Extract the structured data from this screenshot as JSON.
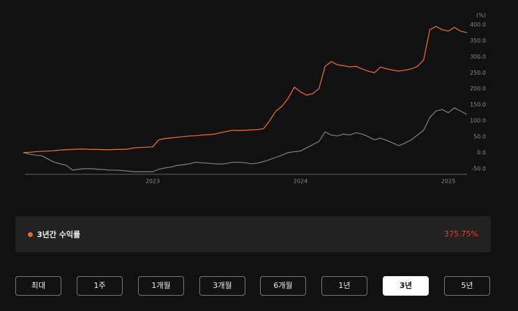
{
  "chart_data": {
    "type": "line",
    "y_unit": "(%)",
    "categories": [
      null,
      null,
      null,
      null,
      null,
      null,
      null,
      null,
      null,
      null,
      null,
      null,
      null,
      null,
      null,
      null,
      null,
      null,
      null,
      null,
      null,
      "2023",
      null,
      null,
      null,
      null,
      null,
      null,
      null,
      null,
      null,
      null,
      null,
      null,
      null,
      null,
      null,
      null,
      null,
      null,
      null,
      null,
      null,
      null,
      null,
      "2024",
      null,
      null,
      null,
      null,
      null,
      null,
      null,
      null,
      null,
      null,
      null,
      null,
      null,
      null,
      null,
      null,
      null,
      null,
      null,
      null,
      null,
      null,
      null,
      "2025",
      null,
      null,
      null
    ],
    "series": [
      {
        "color": "#e8692d",
        "values": [
          0,
          1,
          3,
          4,
          5,
          6,
          8,
          9,
          10,
          11,
          11,
          10,
          10,
          9,
          9,
          10,
          10,
          11,
          15,
          16,
          17,
          18,
          40,
          44,
          46,
          48,
          50,
          52,
          53,
          55,
          56,
          58,
          62,
          66,
          70,
          69,
          70,
          71,
          72,
          75,
          100,
          130,
          145,
          170,
          205,
          190,
          180,
          185,
          200,
          270,
          285,
          275,
          272,
          268,
          270,
          262,
          255,
          250,
          268,
          262,
          258,
          255,
          258,
          262,
          270,
          290,
          385,
          395,
          385,
          380,
          392,
          380,
          375.75
        ]
      },
      {
        "color": "#7a7a7a",
        "values": [
          0,
          -5,
          -8,
          -10,
          -20,
          -30,
          -35,
          -40,
          -55,
          -52,
          -50,
          -50,
          -52,
          -53,
          -55,
          -55,
          -56,
          -58,
          -60,
          -60,
          -60,
          -60,
          -52,
          -48,
          -45,
          -40,
          -38,
          -35,
          -30,
          -32,
          -33,
          -35,
          -36,
          -34,
          -30,
          -30,
          -32,
          -35,
          -33,
          -28,
          -22,
          -15,
          -8,
          0,
          3,
          5,
          15,
          25,
          35,
          65,
          55,
          52,
          58,
          55,
          62,
          58,
          50,
          40,
          45,
          38,
          30,
          22,
          30,
          40,
          55,
          70,
          110,
          130,
          135,
          125,
          140,
          130,
          120
        ]
      }
    ],
    "ylim": [
      -68,
      410
    ],
    "yticks": [
      {
        "value": -50,
        "label": "-50.0"
      },
      {
        "value": 0,
        "label": "0.0"
      },
      {
        "value": 50,
        "label": "50.0"
      },
      {
        "value": 100,
        "label": "100.0"
      },
      {
        "value": 150,
        "label": "150.0"
      },
      {
        "value": 200,
        "label": "200.0"
      },
      {
        "value": 250,
        "label": "250.0"
      },
      {
        "value": 300,
        "label": "300.0"
      },
      {
        "value": 350,
        "label": "350.0"
      },
      {
        "value": 400,
        "label": "400.0"
      }
    ]
  },
  "summary": {
    "label": "3년간 수익률",
    "value": "375.75%"
  },
  "buttons": [
    "최대",
    "1주",
    "1개월",
    "3개월",
    "6개월",
    "1년",
    "3년",
    "5년"
  ],
  "active_button": 6
}
